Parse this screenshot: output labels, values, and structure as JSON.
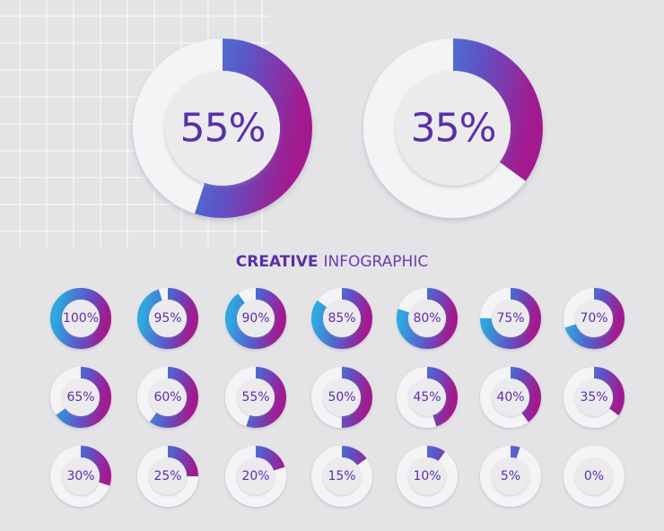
{
  "heading": {
    "strong": "CREATIVE",
    "light": "INFOGRAPHIC"
  },
  "colors": {
    "gradient_start": "#2ea8df",
    "gradient_mid": "#5b57c9",
    "gradient_end": "#a21a8e",
    "text": "#5a2fa8",
    "track": "#f4f4f6",
    "background": "#e4e4e7"
  },
  "large_charts": [
    {
      "value": 55,
      "label": "55%"
    },
    {
      "value": 35,
      "label": "35%"
    }
  ],
  "small_charts": [
    {
      "value": 100,
      "label": "100%"
    },
    {
      "value": 95,
      "label": "95%"
    },
    {
      "value": 90,
      "label": "90%"
    },
    {
      "value": 85,
      "label": "85%"
    },
    {
      "value": 80,
      "label": "80%"
    },
    {
      "value": 75,
      "label": "75%"
    },
    {
      "value": 70,
      "label": "70%"
    },
    {
      "value": 65,
      "label": "65%"
    },
    {
      "value": 60,
      "label": "60%"
    },
    {
      "value": 55,
      "label": "55%"
    },
    {
      "value": 50,
      "label": "50%"
    },
    {
      "value": 45,
      "label": "45%"
    },
    {
      "value": 40,
      "label": "40%"
    },
    {
      "value": 35,
      "label": "35%"
    },
    {
      "value": 30,
      "label": "30%"
    },
    {
      "value": 25,
      "label": "25%"
    },
    {
      "value": 20,
      "label": "20%"
    },
    {
      "value": 15,
      "label": "15%"
    },
    {
      "value": 10,
      "label": "10%"
    },
    {
      "value": 5,
      "label": "5%"
    },
    {
      "value": 0,
      "label": "0%"
    }
  ]
}
